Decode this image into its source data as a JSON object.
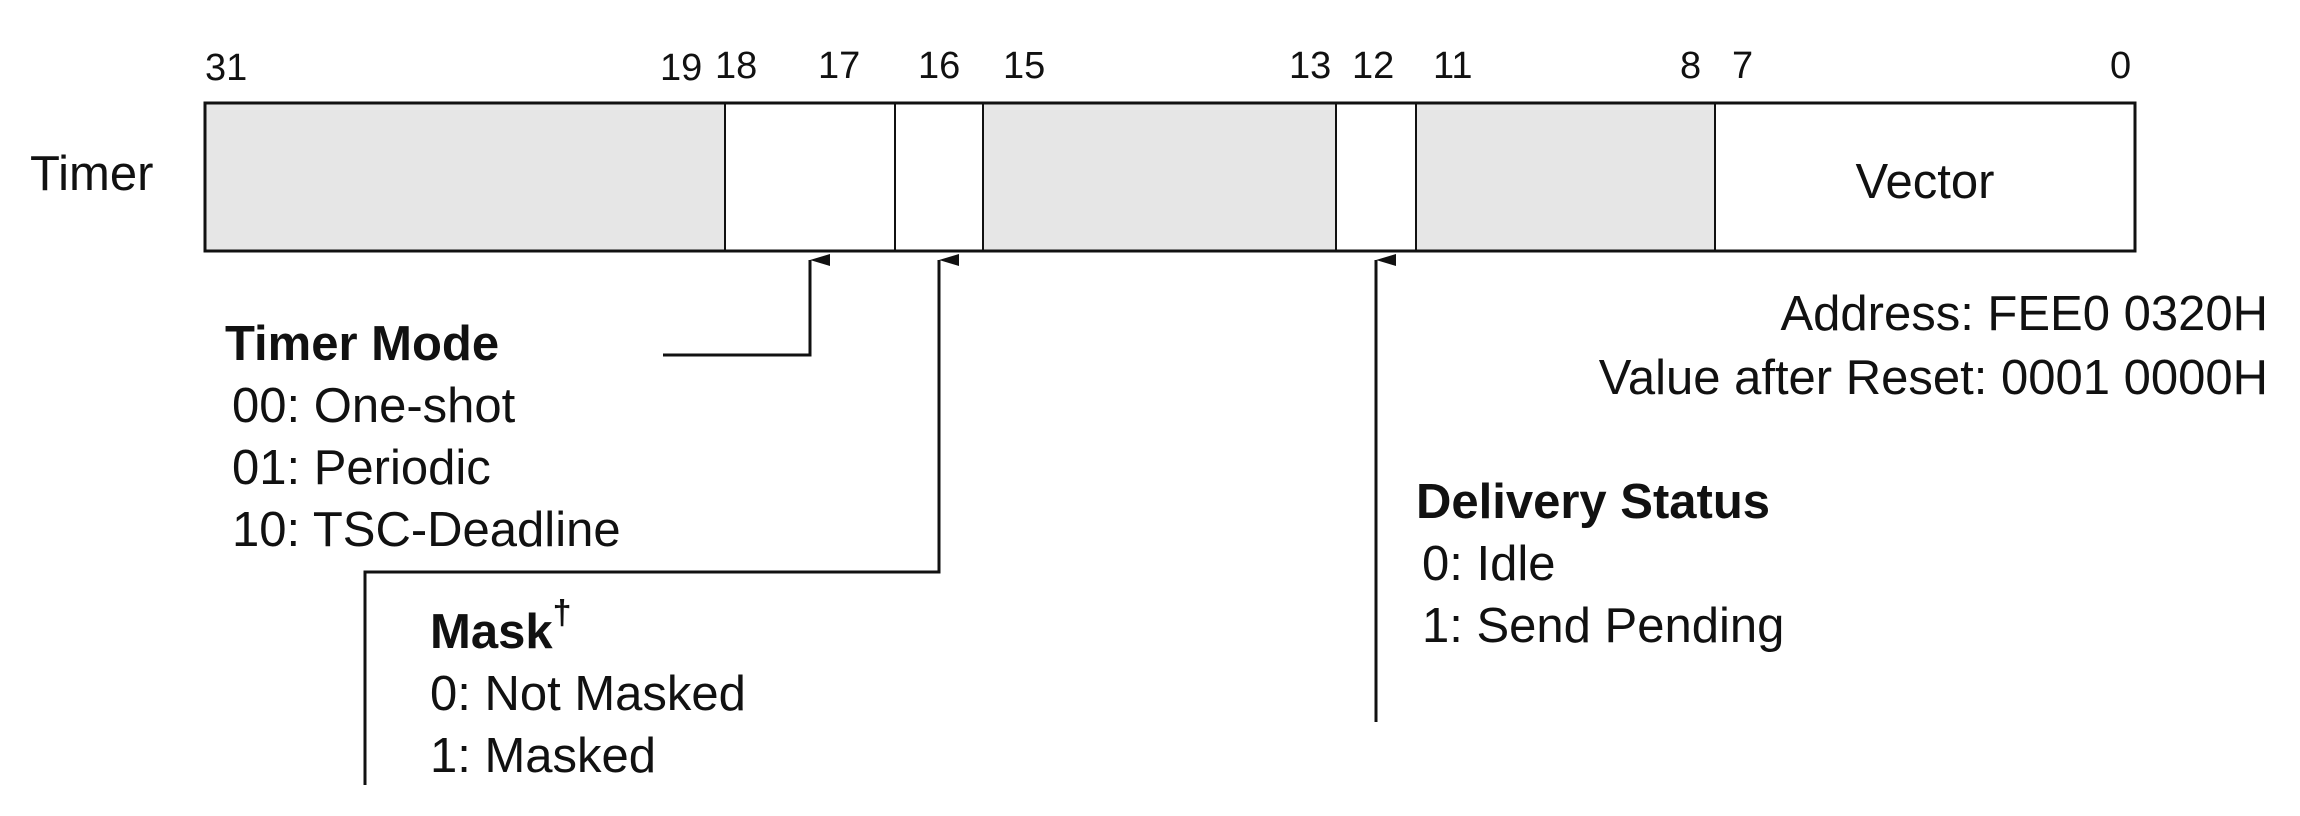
{
  "register": {
    "name": "Timer",
    "bit_numbers": [
      "31",
      "19",
      "18",
      "17",
      "16",
      "15",
      "13",
      "12",
      "11",
      "8",
      "7",
      "0"
    ],
    "fields": [
      {
        "name": "reserved-31-19",
        "label": "",
        "reserved": true
      },
      {
        "name": "timer-mode-18-17",
        "label": "",
        "reserved": false
      },
      {
        "name": "mask-16",
        "label": "",
        "reserved": false
      },
      {
        "name": "reserved-15-13",
        "label": "",
        "reserved": true
      },
      {
        "name": "delivery-status-12",
        "label": "",
        "reserved": false
      },
      {
        "name": "reserved-11-8",
        "label": "",
        "reserved": true
      },
      {
        "name": "vector-7-0",
        "label": "Vector",
        "reserved": false
      }
    ]
  },
  "address": "Address: FEE0 0320H",
  "reset_value": "Value after Reset: 0001 0000H",
  "timer_mode": {
    "title": "Timer Mode",
    "options": [
      "00: One-shot",
      "01: Periodic",
      "10: TSC-Deadline"
    ]
  },
  "mask": {
    "title": "Mask",
    "superscript": "†",
    "options": [
      "0: Not Masked",
      "1: Masked"
    ]
  },
  "delivery_status": {
    "title": "Delivery Status",
    "options": [
      "0: Idle",
      "1: Send Pending"
    ]
  },
  "colors": {
    "reserved_fill": "#e6e6e6",
    "field_fill": "#ffffff",
    "line": "#111111"
  }
}
